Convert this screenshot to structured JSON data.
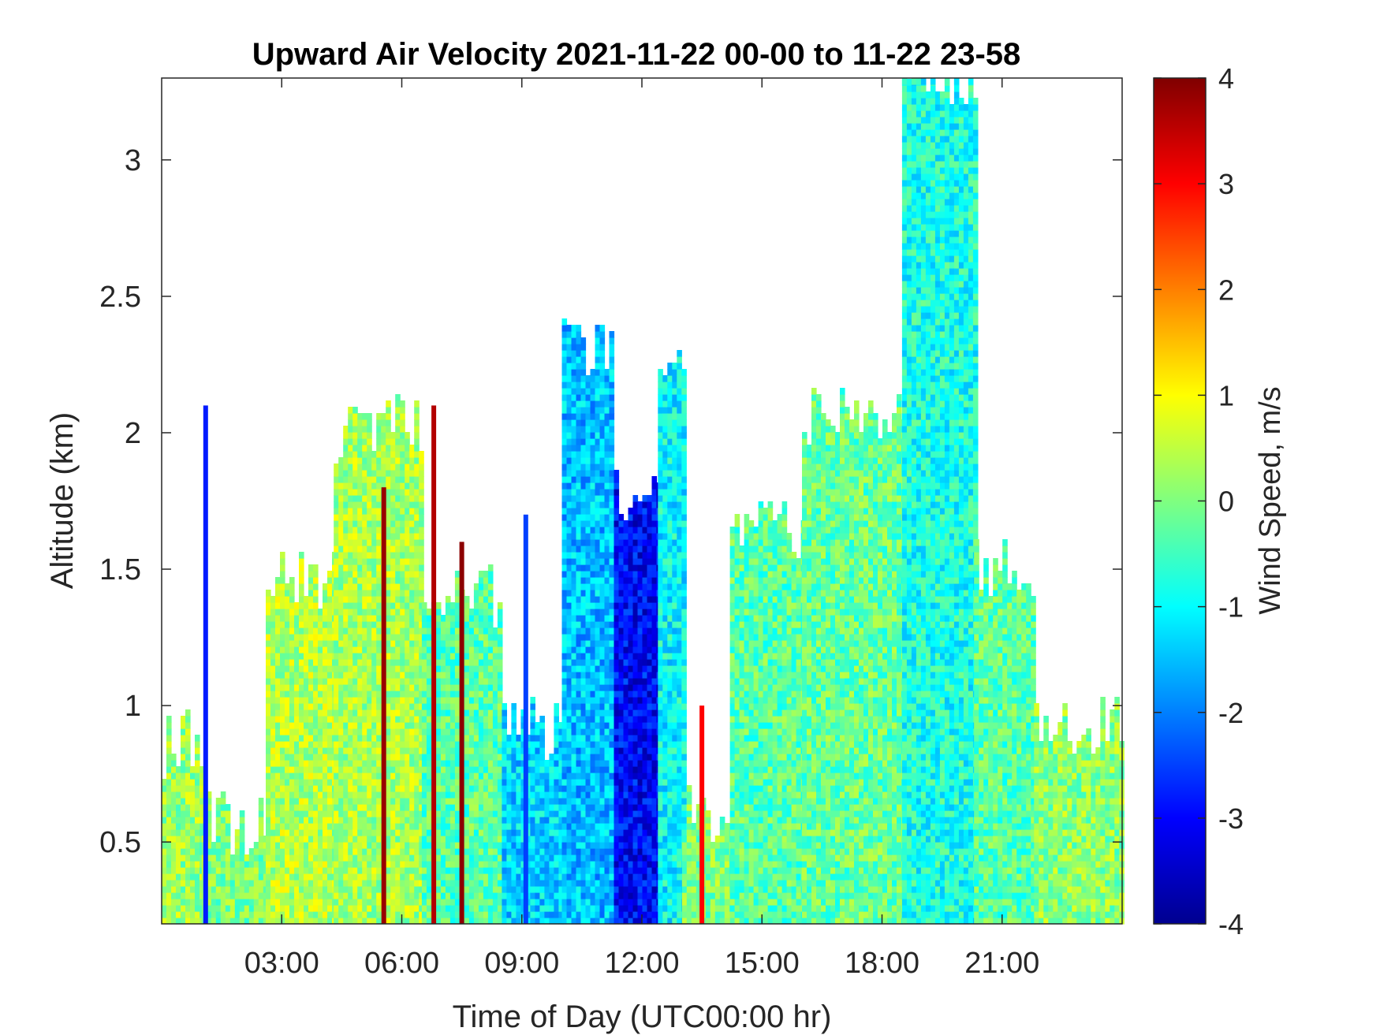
{
  "chart_data": {
    "type": "heatmap",
    "title": "Upward Air Velocity 2021-11-22 00-00 to 11-22 23-58",
    "xlabel": "Time of Day (UTC00:00 hr)",
    "ylabel": "Altitude (km)",
    "xlim": [
      0,
      24
    ],
    "ylim": [
      0.2,
      3.3
    ],
    "x_ticks": [
      3,
      6,
      9,
      12,
      15,
      18,
      21
    ],
    "x_tick_labels": [
      "03:00",
      "06:00",
      "09:00",
      "12:00",
      "15:00",
      "18:00",
      "21:00"
    ],
    "y_ticks": [
      0.5,
      1,
      1.5,
      2,
      2.5,
      3
    ],
    "y_tick_labels": [
      "0.5",
      "1",
      "1.5",
      "2",
      "2.5",
      "3"
    ],
    "grid": false,
    "colorbar": {
      "label": "Wind Speed, m/s",
      "colormap": "jet",
      "range": [
        -4,
        4
      ],
      "ticks": [
        -4,
        -3,
        -2,
        -1,
        0,
        1,
        2,
        3,
        4
      ],
      "tick_labels": [
        "-4",
        "-3",
        "-2",
        "-1",
        "0",
        "1",
        "2",
        "3",
        "4"
      ]
    },
    "approx_field_regions": [
      {
        "hours": [
          0.0,
          1.0
        ],
        "altitude_top_km": 0.85,
        "typical_value": 0.2
      },
      {
        "hours": [
          1.0,
          2.6
        ],
        "altitude_top_km": 0.55,
        "typical_value": 0.0
      },
      {
        "hours": [
          2.6,
          4.3
        ],
        "altitude_top_km": 1.45,
        "typical_value": 0.4
      },
      {
        "hours": [
          4.3,
          6.5
        ],
        "altitude_top_km": 2.0,
        "typical_value": 0.3
      },
      {
        "hours": [
          6.5,
          8.5
        ],
        "altitude_top_km": 1.4,
        "typical_value": -0.3
      },
      {
        "hours": [
          8.5,
          10.0
        ],
        "altitude_top_km": 0.9,
        "typical_value": -1.3
      },
      {
        "hours": [
          10.0,
          11.3
        ],
        "altitude_top_km": 2.3,
        "typical_value": -1.5
      },
      {
        "hours": [
          11.3,
          12.4
        ],
        "altitude_top_km": 1.75,
        "typical_value": -3.0
      },
      {
        "hours": [
          12.4,
          13.0
        ],
        "altitude_top_km": 2.2,
        "typical_value": -1.0
      },
      {
        "hours": [
          13.0,
          14.2
        ],
        "altitude_top_km": 0.6,
        "typical_value": 0.0
      },
      {
        "hours": [
          14.2,
          16.0
        ],
        "altitude_top_km": 1.65,
        "typical_value": -0.3
      },
      {
        "hours": [
          16.0,
          18.5
        ],
        "altitude_top_km": 2.05,
        "typical_value": -0.2
      },
      {
        "hours": [
          18.5,
          20.3
        ],
        "altitude_top_km": 3.3,
        "typical_value": -0.8
      },
      {
        "hours": [
          20.3,
          21.8
        ],
        "altitude_top_km": 1.5,
        "typical_value": -0.3
      },
      {
        "hours": [
          21.8,
          24.0
        ],
        "altitude_top_km": 0.9,
        "typical_value": 0.1
      }
    ],
    "approx_vertical_streaks": [
      {
        "hour": 1.1,
        "altitude_top_km": 2.1,
        "value": -2.8
      },
      {
        "hour": 5.55,
        "altitude_top_km": 1.8,
        "value": 3.8
      },
      {
        "hour": 6.8,
        "altitude_top_km": 2.1,
        "value": 3.6
      },
      {
        "hour": 7.5,
        "altitude_top_km": 1.6,
        "value": 3.9
      },
      {
        "hour": 9.1,
        "altitude_top_km": 1.7,
        "value": -2.5
      },
      {
        "hour": 13.5,
        "altitude_top_km": 1.0,
        "value": 3.0
      }
    ]
  }
}
